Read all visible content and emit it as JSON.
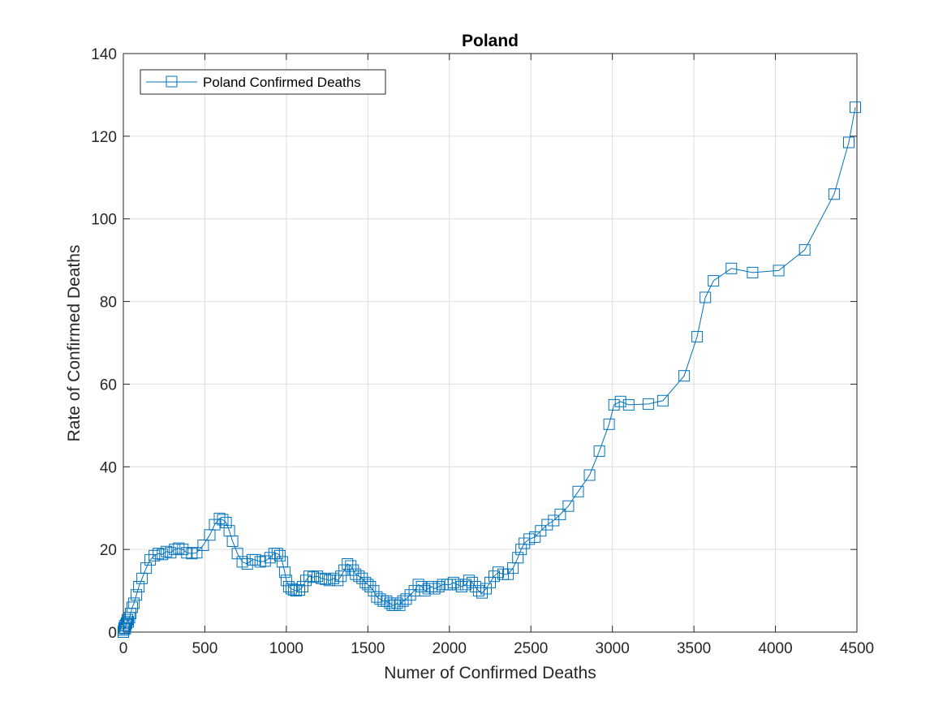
{
  "chart_data": {
    "type": "line",
    "title": "Poland",
    "xlabel": "Numer of Confirmed Deaths",
    "ylabel": "Rate of Confirmed Deaths",
    "xlim": [
      0,
      4500
    ],
    "ylim": [
      0,
      140
    ],
    "xticks": [
      0,
      500,
      1000,
      1500,
      2000,
      2500,
      3000,
      3500,
      4000,
      4500
    ],
    "yticks": [
      0,
      20,
      40,
      60,
      80,
      100,
      120,
      140
    ],
    "xtick_labels": [
      "0",
      "500",
      "1000",
      "1500",
      "2000",
      "2500",
      "3000",
      "3500",
      "4000",
      "4500"
    ],
    "ytick_labels": [
      "0",
      "20",
      "40",
      "60",
      "80",
      "100",
      "120",
      "140"
    ],
    "grid": true,
    "box": true,
    "legend": {
      "location": "top-left"
    },
    "colors": {
      "series": "#0072BD",
      "grid": "#dfdfdf",
      "axis": "#262626"
    },
    "series": [
      {
        "name": "Poland Confirmed Deaths",
        "marker": "square",
        "x": [
          0,
          2,
          5,
          8,
          12,
          16,
          20,
          25,
          30,
          38,
          45,
          55,
          65,
          80,
          95,
          115,
          140,
          165,
          190,
          215,
          240,
          265,
          290,
          315,
          340,
          365,
          390,
          420,
          450,
          490,
          530,
          560,
          590,
          610,
          630,
          650,
          670,
          700,
          730,
          760,
          790,
          810,
          840,
          870,
          900,
          925,
          945,
          960,
          975,
          990,
          1000,
          1015,
          1030,
          1045,
          1060,
          1080,
          1100,
          1120,
          1140,
          1165,
          1190,
          1215,
          1240,
          1265,
          1290,
          1315,
          1335,
          1355,
          1375,
          1395,
          1410,
          1425,
          1445,
          1465,
          1485,
          1500,
          1515,
          1535,
          1555,
          1575,
          1595,
          1615,
          1635,
          1650,
          1665,
          1680,
          1695,
          1715,
          1735,
          1760,
          1785,
          1810,
          1830,
          1850,
          1870,
          1890,
          1910,
          1935,
          1960,
          1985,
          2005,
          2025,
          2050,
          2075,
          2100,
          2120,
          2140,
          2160,
          2180,
          2200,
          2225,
          2250,
          2275,
          2300,
          2330,
          2360,
          2390,
          2420,
          2440,
          2460,
          2490,
          2525,
          2560,
          2600,
          2640,
          2680,
          2730,
          2790,
          2860,
          2920,
          2980,
          3010,
          3050,
          3100,
          3220,
          3310,
          3440,
          3520,
          3570,
          3620,
          3730,
          3860,
          4020,
          4180,
          4360,
          4450,
          4490
        ],
        "y": [
          0,
          0.5,
          1.0,
          1.5,
          0.8,
          1.8,
          2.2,
          3.0,
          2.5,
          3.5,
          4.5,
          6.0,
          7.0,
          9.0,
          11.0,
          13.0,
          15.5,
          17.5,
          18.5,
          19.0,
          18.8,
          19.5,
          19.2,
          20.0,
          20.3,
          20.0,
          19.2,
          19.0,
          19.2,
          21.0,
          23.5,
          26.0,
          27.5,
          27.2,
          26.5,
          24.5,
          22.0,
          19.0,
          17.0,
          16.5,
          17.5,
          17.5,
          17.0,
          17.2,
          18.0,
          19.0,
          19.0,
          18.5,
          17.0,
          14.5,
          12.5,
          11.0,
          10.5,
          10.2,
          10.0,
          10.2,
          11.0,
          12.5,
          13.5,
          13.3,
          13.5,
          13.0,
          12.8,
          12.5,
          13.0,
          12.5,
          13.5,
          15.0,
          16.5,
          16.0,
          15.0,
          14.0,
          13.5,
          13.0,
          12.0,
          11.5,
          11.0,
          10.0,
          8.5,
          8.0,
          7.5,
          7.5,
          7.0,
          6.5,
          6.5,
          7.0,
          6.5,
          7.5,
          8.0,
          9.0,
          10.0,
          11.5,
          11.0,
          10.0,
          10.5,
          11.0,
          10.5,
          11.0,
          11.5,
          11.5,
          11.5,
          12.0,
          11.5,
          11.0,
          11.5,
          12.5,
          12.0,
          11.0,
          10.0,
          9.5,
          10.5,
          12.0,
          13.5,
          14.5,
          14.0,
          14.0,
          15.5,
          18.0,
          20.0,
          21.5,
          22.5,
          23.0,
          24.5,
          26.0,
          27.0,
          28.5,
          30.5,
          34.0,
          38.0,
          43.8,
          50.3,
          55.0,
          55.8,
          55.0,
          55.2,
          56.0,
          62.0,
          71.5,
          81.0,
          85.0,
          88.0,
          87.0,
          87.5,
          92.5,
          106.0,
          118.5,
          127.0
        ]
      }
    ]
  }
}
